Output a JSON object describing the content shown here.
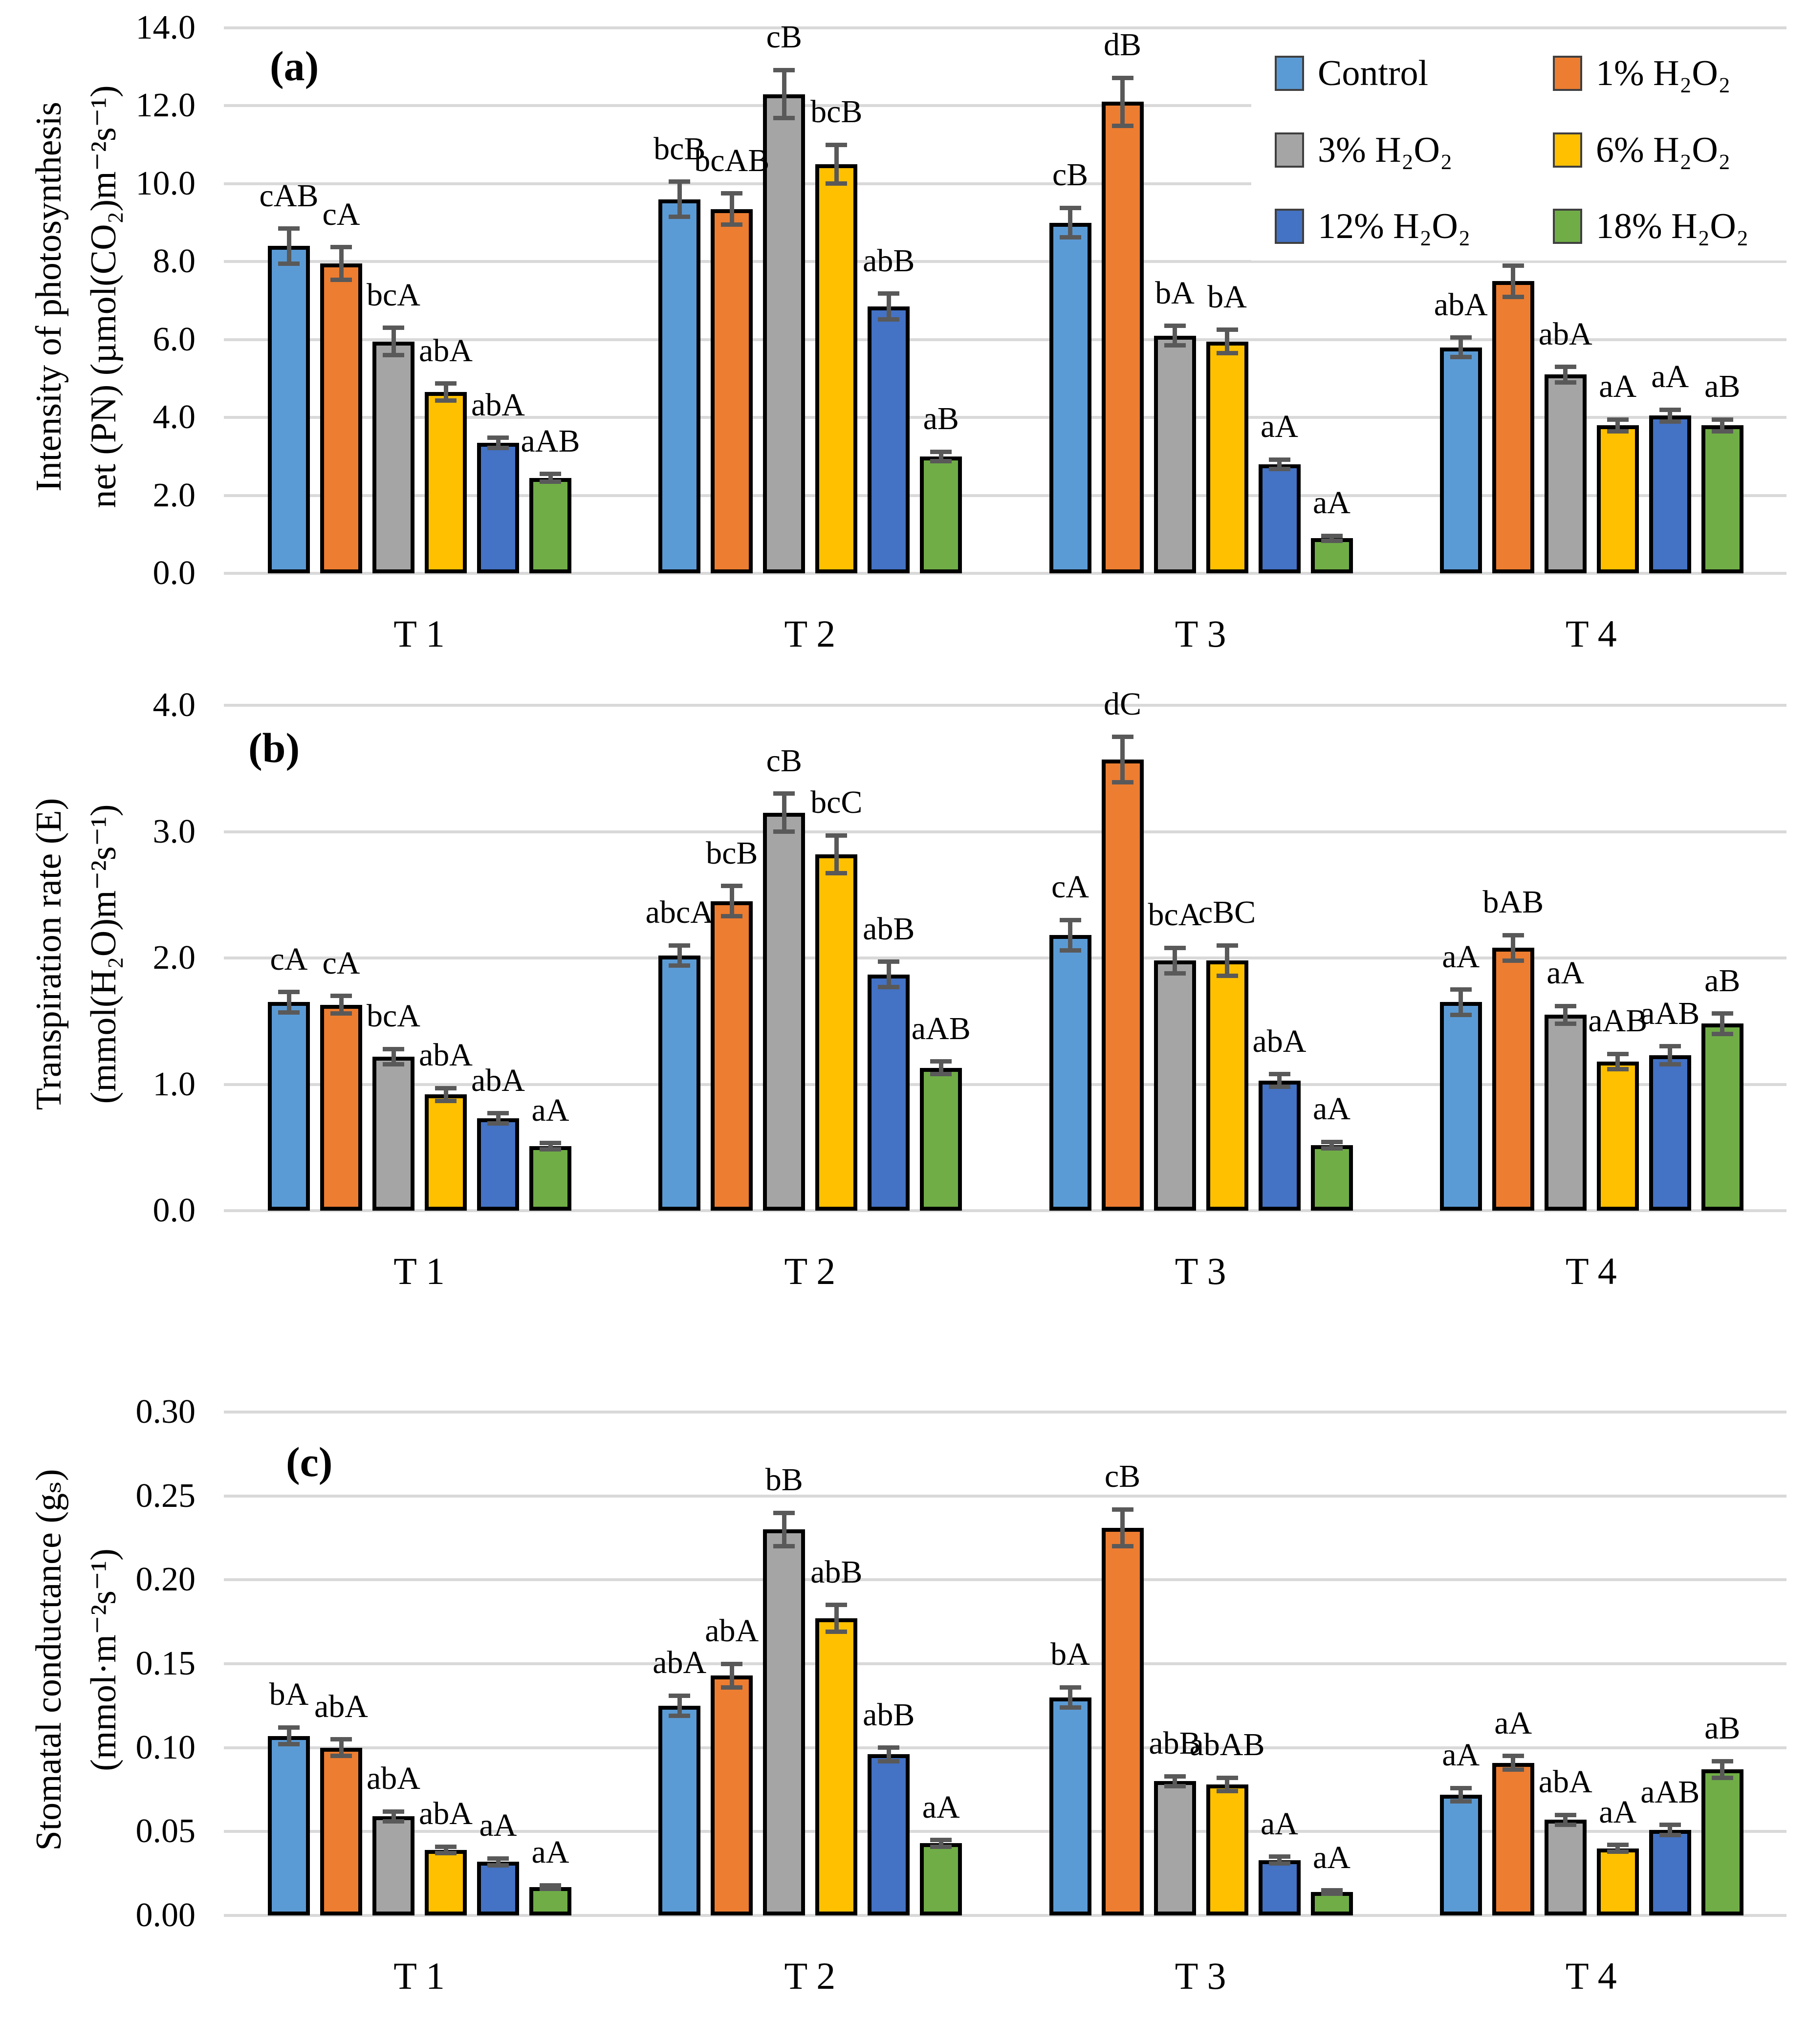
{
  "figure": {
    "background": "#FFFFFF",
    "grid_color": "#D9D9D9",
    "error_bar_color": "#595959",
    "bar_outline_color": "#000000",
    "text_color": "#000000",
    "series": [
      {
        "name": "Control",
        "color": "#5B9BD5"
      },
      {
        "name": "1% H₂O₂",
        "color": "#ED7D31"
      },
      {
        "name": "3% H₂O₂",
        "color": "#A5A5A5"
      },
      {
        "name": "6% H₂O₂",
        "color": "#FFC000"
      },
      {
        "name": "12% H₂O₂",
        "color": "#4472C4"
      },
      {
        "name": "18% H₂O₂",
        "color": "#70AD47"
      }
    ],
    "legend": {
      "position": "top-right",
      "rows": 3,
      "cols": 2
    }
  },
  "chart_data": [
    {
      "id": "a",
      "type": "bar",
      "panel_label": "(a)",
      "ylabel_lines": [
        "Intensity of photosynthesis",
        "net (PN) (µmol(CO₂)m⁻²s⁻¹)"
      ],
      "categories": [
        "T 1",
        "T 2",
        "T 3",
        "T 4"
      ],
      "ylim": [
        0,
        14
      ],
      "yticks": [
        "0.0",
        "2.0",
        "4.0",
        "6.0",
        "8.0",
        "10.0",
        "12.0",
        "14.0"
      ],
      "grid": true,
      "series": [
        {
          "name": "Control",
          "values": [
            8.4,
            9.6,
            9.0,
            5.8
          ],
          "errors": [
            0.45,
            0.45,
            0.38,
            0.25
          ],
          "labels": [
            "cAB",
            "bcB",
            "cB",
            "abA"
          ]
        },
        {
          "name": "1% H₂O₂",
          "values": [
            7.95,
            9.35,
            12.1,
            7.5
          ],
          "errors": [
            0.42,
            0.4,
            0.62,
            0.4
          ],
          "labels": [
            "cA",
            "bcAB",
            "dB",
            "bA"
          ]
        },
        {
          "name": "3% H₂O₂",
          "values": [
            5.95,
            12.3,
            6.1,
            5.1
          ],
          "errors": [
            0.35,
            0.62,
            0.25,
            0.2
          ],
          "labels": [
            "bcA",
            "cB",
            "bA",
            "abA"
          ]
        },
        {
          "name": "6% H₂O₂",
          "values": [
            4.65,
            10.5,
            5.95,
            3.8
          ],
          "errors": [
            0.22,
            0.5,
            0.3,
            0.15
          ],
          "labels": [
            "abA",
            "bcB",
            "bA",
            "aA"
          ]
        },
        {
          "name": "12% H₂O₂",
          "values": [
            3.35,
            6.85,
            2.8,
            4.05
          ],
          "errors": [
            0.13,
            0.33,
            0.12,
            0.15
          ],
          "labels": [
            "abA",
            "abB",
            "aA",
            "aA"
          ]
        },
        {
          "name": "18% H₂O₂",
          "values": [
            2.45,
            3.0,
            0.9,
            3.8
          ],
          "errors": [
            0.1,
            0.12,
            0.06,
            0.15
          ],
          "labels": [
            "aAB",
            "aB",
            "aA",
            "aB"
          ]
        }
      ]
    },
    {
      "id": "b",
      "type": "bar",
      "panel_label": "(b)",
      "ylabel_lines": [
        "Transpiration rate (E)",
        "(mmol(H₂O)m⁻²s⁻¹)"
      ],
      "categories": [
        "T 1",
        "T 2",
        "T 3",
        "T 4"
      ],
      "ylim": [
        0,
        4
      ],
      "yticks": [
        "0.0",
        "1.0",
        "2.0",
        "3.0",
        "4.0"
      ],
      "grid": true,
      "series": [
        {
          "name": "Control",
          "values": [
            1.65,
            2.02,
            2.18,
            1.65
          ],
          "errors": [
            0.08,
            0.08,
            0.12,
            0.1
          ],
          "labels": [
            "cA",
            "abcA",
            "cA",
            "aA"
          ]
        },
        {
          "name": "1% H₂O₂",
          "values": [
            1.63,
            2.45,
            3.57,
            2.08
          ],
          "errors": [
            0.07,
            0.12,
            0.18,
            0.1
          ],
          "labels": [
            "cA",
            "bcB",
            "dC",
            "bAB"
          ]
        },
        {
          "name": "3% H₂O₂",
          "values": [
            1.22,
            3.15,
            1.98,
            1.55
          ],
          "errors": [
            0.06,
            0.15,
            0.1,
            0.07
          ],
          "labels": [
            "bcA",
            "cB",
            "bcA",
            "aA"
          ]
        },
        {
          "name": "6% H₂O₂",
          "values": [
            0.92,
            2.82,
            1.98,
            1.18
          ],
          "errors": [
            0.05,
            0.15,
            0.12,
            0.06
          ],
          "labels": [
            "abA",
            "bcC",
            "cBC",
            "aAB"
          ]
        },
        {
          "name": "12% H₂O₂",
          "values": [
            0.73,
            1.87,
            1.03,
            1.23
          ],
          "errors": [
            0.04,
            0.1,
            0.05,
            0.07
          ],
          "labels": [
            "abA",
            "abB",
            "abA",
            "aAB"
          ]
        },
        {
          "name": "18% H₂O₂",
          "values": [
            0.51,
            1.13,
            0.52,
            1.48
          ],
          "errors": [
            0.025,
            0.05,
            0.025,
            0.08
          ],
          "labels": [
            "aA",
            "aAB",
            "aA",
            "aB"
          ]
        }
      ]
    },
    {
      "id": "c",
      "type": "bar",
      "panel_label": "(c)",
      "ylabel_lines": [
        "Stomatal conductance (gₛ)",
        "(mmol·m⁻²s⁻¹)"
      ],
      "categories": [
        "T 1",
        "T 2",
        "T 3",
        "T 4"
      ],
      "ylim": [
        0,
        0.3
      ],
      "yticks": [
        "0.00",
        "0.05",
        "0.10",
        "0.15",
        "0.20",
        "0.25",
        "0.30"
      ],
      "grid": true,
      "series": [
        {
          "name": "Control",
          "values": [
            0.107,
            0.125,
            0.13,
            0.072
          ],
          "errors": [
            0.005,
            0.006,
            0.006,
            0.004
          ],
          "labels": [
            "bA",
            "abA",
            "bA",
            "aA"
          ]
        },
        {
          "name": "1% H₂O₂",
          "values": [
            0.1,
            0.143,
            0.231,
            0.091
          ],
          "errors": [
            0.005,
            0.007,
            0.011,
            0.004
          ],
          "labels": [
            "abA",
            "abA",
            "cB",
            "aA"
          ]
        },
        {
          "name": "3% H₂O₂",
          "values": [
            0.059,
            0.23,
            0.08,
            0.057
          ],
          "errors": [
            0.003,
            0.01,
            0.003,
            0.003
          ],
          "labels": [
            "abA",
            "bB",
            "abB",
            "abA"
          ]
        },
        {
          "name": "6% H₂O₂",
          "values": [
            0.039,
            0.177,
            0.078,
            0.04
          ],
          "errors": [
            0.002,
            0.008,
            0.004,
            0.002
          ],
          "labels": [
            "abA",
            "abB",
            "abAB",
            "aA"
          ]
        },
        {
          "name": "12% H₂O₂",
          "values": [
            0.032,
            0.096,
            0.033,
            0.051
          ],
          "errors": [
            0.002,
            0.004,
            0.002,
            0.003
          ],
          "labels": [
            "aA",
            "abB",
            "aA",
            "aAB"
          ]
        },
        {
          "name": "18% H₂O₂",
          "values": [
            0.017,
            0.043,
            0.014,
            0.087
          ],
          "errors": [
            0.001,
            0.002,
            0.001,
            0.005
          ],
          "labels": [
            "aA",
            "aA",
            "aA",
            "aB"
          ]
        }
      ]
    }
  ]
}
